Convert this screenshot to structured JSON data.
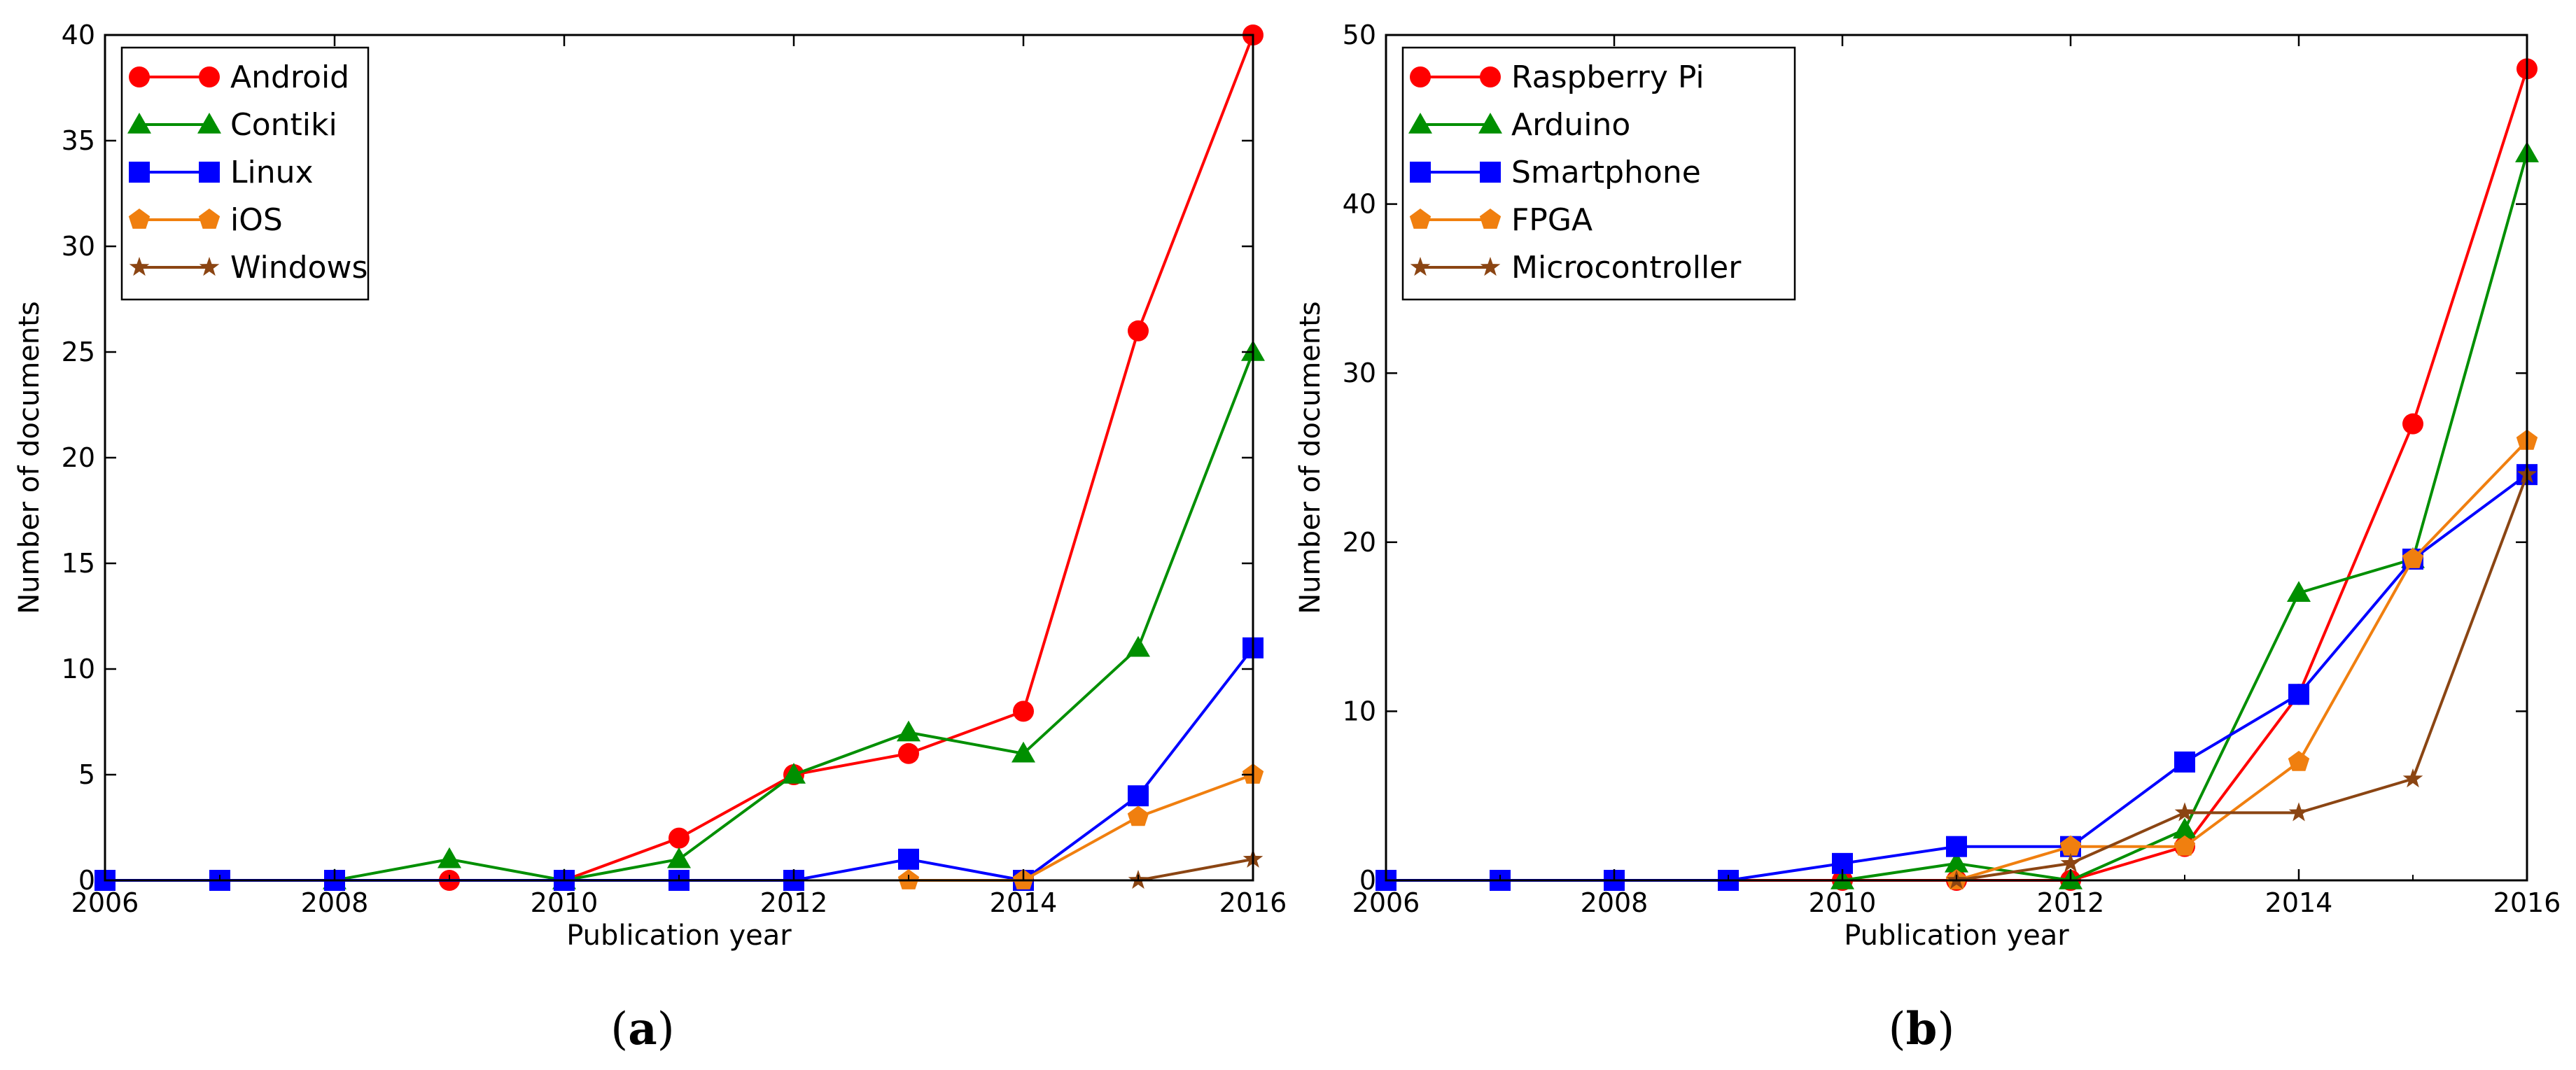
{
  "chart_data": [
    {
      "type": "line",
      "caption_letter": "a",
      "xlabel": "Publication year",
      "ylabel": "Number of documents",
      "xlim": [
        2006,
        2016
      ],
      "ylim": [
        0,
        40
      ],
      "xticks": [
        "2006",
        "2008",
        "2010",
        "2012",
        "2014",
        "2016"
      ],
      "yticks": [
        "0",
        "5",
        "10",
        "15",
        "20",
        "25",
        "30",
        "35",
        "40"
      ],
      "legend_position": "top-left",
      "series": [
        {
          "name": "Android",
          "color": "#ff0000",
          "marker": "circle",
          "x": [
            2006,
            2007,
            2008,
            2009,
            2010,
            2011,
            2012,
            2013,
            2014,
            2015,
            2016
          ],
          "values": [
            0,
            0,
            0,
            0,
            0,
            2,
            5,
            6,
            8,
            26,
            40
          ]
        },
        {
          "name": "Contiki",
          "color": "#008f00",
          "marker": "triangle",
          "x": [
            2008,
            2009,
            2010,
            2011,
            2012,
            2013,
            2014,
            2015,
            2016
          ],
          "values": [
            0,
            1,
            0,
            1,
            5,
            7,
            6,
            11,
            25
          ]
        },
        {
          "name": "Linux",
          "color": "#0000ff",
          "marker": "square",
          "x": [
            2006,
            2007,
            2008,
            2010,
            2011,
            2012,
            2013,
            2014,
            2015,
            2016
          ],
          "values": [
            0,
            0,
            0,
            0,
            0,
            0,
            1,
            0,
            4,
            11
          ]
        },
        {
          "name": "iOS",
          "color": "#f07f0f",
          "marker": "pentagon",
          "x": [
            2013,
            2014,
            2015,
            2016
          ],
          "values": [
            0,
            0,
            3,
            5
          ]
        },
        {
          "name": "Windows",
          "color": "#8b4513",
          "marker": "star",
          "x": [
            2015,
            2016
          ],
          "values": [
            0,
            1
          ]
        }
      ]
    },
    {
      "type": "line",
      "caption_letter": "b",
      "xlabel": "Publication year",
      "ylabel": "Number of documents",
      "xlim": [
        2006,
        2016
      ],
      "ylim": [
        0,
        50
      ],
      "xticks": [
        "2006",
        "2008",
        "2010",
        "2012",
        "2014",
        "2016"
      ],
      "yticks": [
        "0",
        "10",
        "20",
        "30",
        "40",
        "50"
      ],
      "legend_position": "top-left",
      "series": [
        {
          "name": "Raspberry Pi",
          "color": "#ff0000",
          "marker": "circle",
          "x": [
            2006,
            2007,
            2008,
            2009,
            2010,
            2011,
            2012,
            2013,
            2014,
            2015,
            2016
          ],
          "values": [
            0,
            0,
            0,
            0,
            0,
            0,
            0,
            2,
            11,
            27,
            48
          ]
        },
        {
          "name": "Arduino",
          "color": "#008f00",
          "marker": "triangle",
          "x": [
            2010,
            2011,
            2012,
            2013,
            2014,
            2015,
            2016
          ],
          "values": [
            0,
            1,
            0,
            3,
            17,
            19,
            43
          ]
        },
        {
          "name": "Smartphone",
          "color": "#0000ff",
          "marker": "square",
          "x": [
            2006,
            2007,
            2008,
            2009,
            2010,
            2011,
            2012,
            2013,
            2014,
            2015,
            2016
          ],
          "values": [
            0,
            0,
            0,
            0,
            1,
            2,
            2,
            7,
            11,
            19,
            24
          ]
        },
        {
          "name": "FPGA",
          "color": "#f07f0f",
          "marker": "pentagon",
          "x": [
            2011,
            2012,
            2013,
            2014,
            2015,
            2016
          ],
          "values": [
            0,
            2,
            2,
            7,
            19,
            26
          ]
        },
        {
          "name": "Microcontroller",
          "color": "#8b4513",
          "marker": "star",
          "x": [
            2011,
            2012,
            2013,
            2014,
            2015,
            2016
          ],
          "values": [
            0,
            1,
            4,
            4,
            6,
            24
          ]
        }
      ]
    }
  ]
}
